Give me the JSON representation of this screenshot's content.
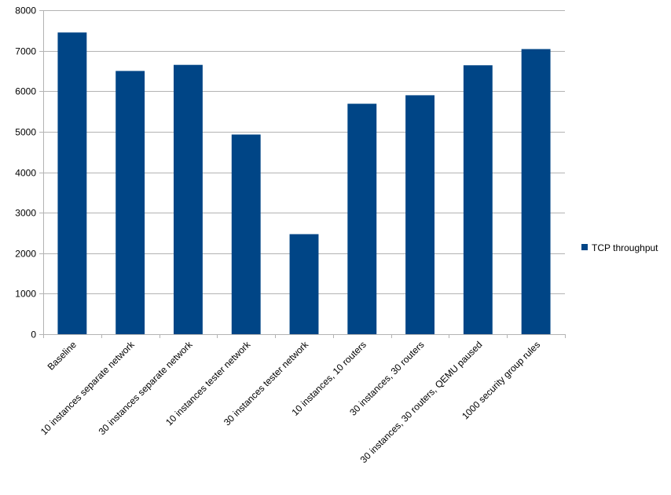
{
  "chart_data": {
    "type": "bar",
    "title": "",
    "xlabel": "",
    "ylabel": "",
    "categories": [
      "Baseline",
      "10 instances separate network",
      "30 instances separate network",
      "10 instances tester network",
      "30 instances tester network",
      "10 instances, 10 routers",
      "30 instances, 30 routers",
      "30 instances, 30 routers, QEMU paused",
      "1000 security group rules"
    ],
    "series": [
      {
        "name": "TCP throughput",
        "color": "#004586",
        "values": [
          7450,
          6500,
          6650,
          4930,
          2470,
          5690,
          5900,
          6640,
          7040
        ]
      }
    ],
    "ylim": [
      0,
      8000
    ],
    "yticks": [
      0,
      1000,
      2000,
      3000,
      4000,
      5000,
      6000,
      7000,
      8000
    ],
    "grid": true,
    "legend_position": "right"
  }
}
